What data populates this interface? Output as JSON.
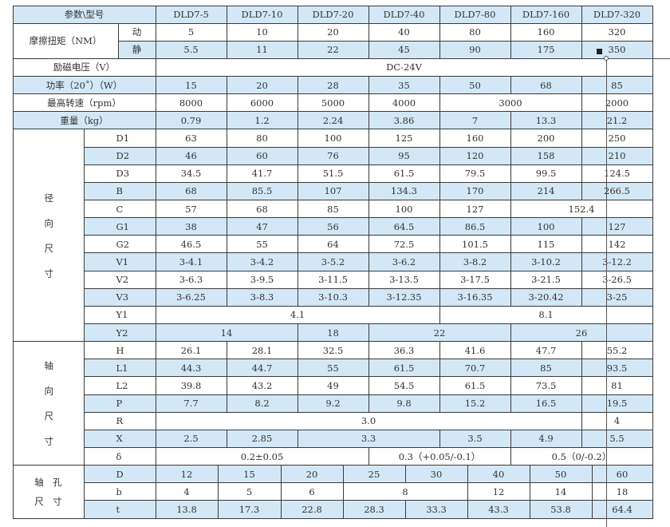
{
  "header": {
    "label": "参数\\型号",
    "models": [
      "DLD7-5",
      "DLD7-10",
      "DLD7-20",
      "DLD7-40",
      "DLD7-80",
      "DLD7-160",
      "DLD7-320"
    ]
  },
  "torque": {
    "label": "摩擦扭矩（NM）",
    "dynamic_label": "动",
    "static_label": "静",
    "dynamic": [
      "5",
      "10",
      "20",
      "40",
      "80",
      "160",
      "320"
    ],
    "static": [
      "5.5",
      "11",
      "22",
      "45",
      "90",
      "175",
      "350"
    ]
  },
  "voltage": {
    "label": "励磁电压（V）",
    "values": [
      "DC-24V"
    ]
  },
  "power": {
    "label": "功率（20˚）（W）",
    "values": [
      "15",
      "20",
      "28",
      "35",
      "50",
      "68",
      "85"
    ]
  },
  "speed": {
    "label": "最高转速（rpm）",
    "values": [
      "8000",
      "6000",
      "5000",
      "4000",
      "3000",
      "2000"
    ]
  },
  "weight": {
    "label": "重量（kg）",
    "values": [
      "0.79",
      "1.2",
      "2.24",
      "3.86",
      "7",
      "13.3",
      "21.2"
    ]
  },
  "radial": {
    "label": "径向尺寸",
    "rows": [
      {
        "label": "D1",
        "values": [
          "63",
          "80",
          "100",
          "125",
          "160",
          "200",
          "250"
        ]
      },
      {
        "label": "D2",
        "values": [
          "46",
          "60",
          "76",
          "95",
          "120",
          "158",
          "210"
        ]
      },
      {
        "label": "D3",
        "values": [
          "34.5",
          "41.7",
          "51.5",
          "61.5",
          "79.5",
          "99.5",
          "124.5"
        ]
      },
      {
        "label": "B",
        "values": [
          "68",
          "85.5",
          "107",
          "134.3",
          "170",
          "214",
          "266.5"
        ]
      },
      {
        "label": "C",
        "values": [
          "57",
          "68",
          "85",
          "100",
          "127",
          "152.4"
        ]
      },
      {
        "label": "G1",
        "values": [
          "38",
          "47",
          "56",
          "64.5",
          "86.5",
          "100",
          "127"
        ]
      },
      {
        "label": "G2",
        "values": [
          "46.5",
          "55",
          "64",
          "72.5",
          "101.5",
          "115",
          "142"
        ]
      },
      {
        "label": "V1",
        "values": [
          "3-4.1",
          "3-4.2",
          "3-5.2",
          "3-6.2",
          "3-8.2",
          "3-10.2",
          "3-12.2"
        ]
      },
      {
        "label": "V2",
        "values": [
          "3-6.3",
          "3-9.5",
          "3-11.5",
          "3-13.5",
          "3-17.5",
          "3-21.5",
          "3-26.5"
        ]
      },
      {
        "label": "V3",
        "values": [
          "3-6.25",
          "3-8.3",
          "3-10.3",
          "3-12.35",
          "3-16.35",
          "3-20.42",
          "3-25"
        ]
      },
      {
        "label": "Y1",
        "values": [
          "4.1",
          "8.1"
        ]
      },
      {
        "label": "Y2",
        "values": [
          "14",
          "18",
          "22",
          "26"
        ]
      }
    ]
  },
  "axial": {
    "label": "轴向尺寸",
    "rows": [
      {
        "label": "H",
        "values": [
          "26.1",
          "28.1",
          "32.5",
          "36.3",
          "41.6",
          "47.7",
          "55.2"
        ]
      },
      {
        "label": "L1",
        "values": [
          "44.3",
          "44.7",
          "55",
          "61.5",
          "70.7",
          "85",
          "93.5"
        ]
      },
      {
        "label": "L2",
        "values": [
          "39.8",
          "43.2",
          "49",
          "54.5",
          "61.5",
          "73.5",
          "81"
        ]
      },
      {
        "label": "P",
        "values": [
          "7.7",
          "8.2",
          "9.2",
          "9.8",
          "15.2",
          "16.5",
          "19.5"
        ]
      },
      {
        "label": "R",
        "values": [
          "3.0",
          "4"
        ]
      },
      {
        "label": "X",
        "values": [
          "2.5",
          "2.85",
          "3.3",
          "3.5",
          "4.9",
          "5.5"
        ]
      },
      {
        "label": "δ",
        "values": [
          "0.2±0.05",
          "0.3（+0.05/-0.1）",
          "0.5（0/-0.2）"
        ]
      }
    ]
  },
  "bore": {
    "label": "轴 孔 尺 寸",
    "label_lines": [
      "轴　孔",
      "尺　寸"
    ],
    "rows": [
      {
        "label": "D",
        "values": [
          "12",
          "15",
          "20",
          "25",
          "30",
          "40",
          "50",
          "60"
        ]
      },
      {
        "label": "b",
        "values": [
          "4",
          "5",
          "6",
          "8",
          "12",
          "14",
          "18"
        ]
      },
      {
        "label": "t",
        "values": [
          "13.8",
          "17.3",
          "22.8",
          "28.3",
          "33.3",
          "43.3",
          "53.8",
          "64.4"
        ]
      }
    ]
  },
  "colors": {
    "row_highlight": "#d3e8f7",
    "border": "#3a3a3a"
  }
}
